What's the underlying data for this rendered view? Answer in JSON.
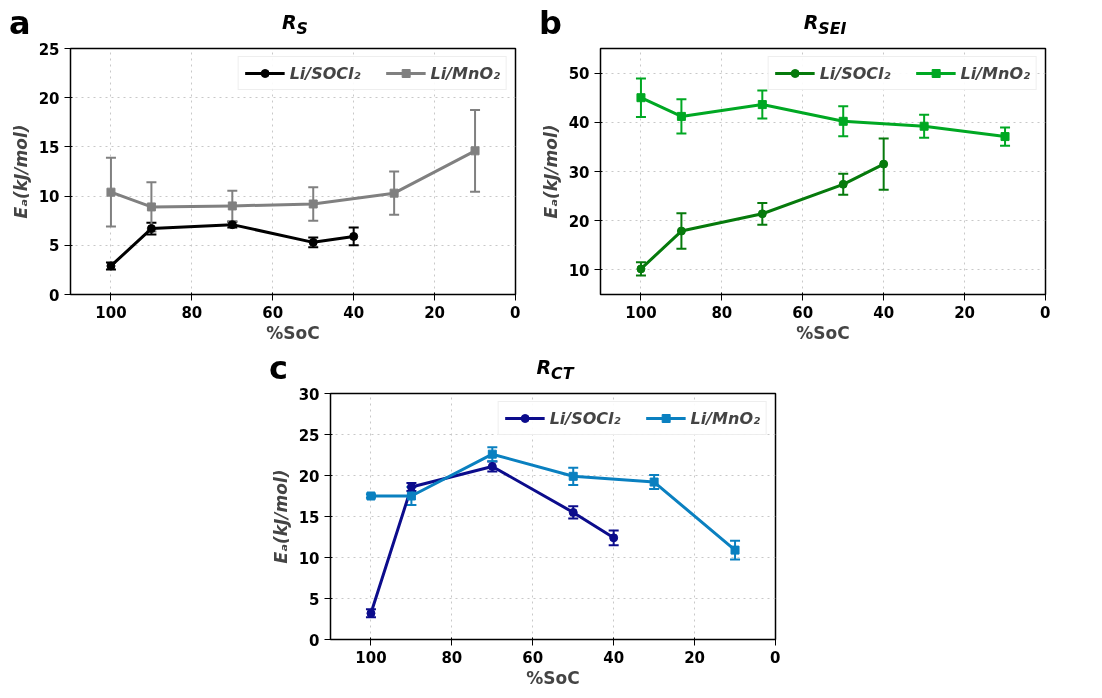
{
  "chart_data": [
    {
      "type": "line",
      "title": "R$_{S}$",
      "xlabel": "%SoC",
      "ylabel": "Eₐ(kJ/mol)",
      "annotations": [
        "a"
      ],
      "xlim": [
        110,
        0
      ],
      "xticks": [
        100,
        80,
        60,
        40,
        20,
        0
      ],
      "ylim": [
        0,
        25
      ],
      "yticks": [
        0,
        5,
        10,
        15,
        20,
        25
      ],
      "grid": true,
      "legend": "top right",
      "line_style": "solid",
      "series": [
        {
          "name": "Li/SOCl₂",
          "color": "#000000",
          "marker": "circle",
          "x": [
            100,
            90,
            70,
            50,
            40
          ],
          "values": [
            2.9,
            6.7,
            7.1,
            5.3,
            5.9
          ],
          "errors": [
            0.35,
            0.6,
            0.3,
            0.5,
            0.9
          ]
        },
        {
          "name": "Li/MnO₂",
          "color": "#808080",
          "marker": "square",
          "x": [
            100,
            90,
            70,
            50,
            30,
            10
          ],
          "values": [
            10.4,
            8.9,
            9.0,
            9.2,
            10.3,
            14.6
          ],
          "errors": [
            3.5,
            2.5,
            1.55,
            1.7,
            2.2,
            4.15
          ]
        }
      ]
    },
    {
      "type": "line",
      "title": "R$_{SEI}$",
      "xlabel": "%SoC",
      "ylabel": "Eₐ(kJ/mol)",
      "annotations": [
        "b"
      ],
      "xlim": [
        110,
        0
      ],
      "xticks": [
        100,
        80,
        60,
        40,
        20,
        0
      ],
      "ylim": [
        5,
        55
      ],
      "yticks": [
        10,
        20,
        30,
        40,
        50
      ],
      "grid": true,
      "legend": "top right",
      "line_style": "solid",
      "series": [
        {
          "name": "Li/SOCl₂",
          "color": "#067a0c",
          "marker": "circle",
          "x": [
            100,
            90,
            70,
            50,
            40
          ],
          "values": [
            10.2,
            17.9,
            21.4,
            27.4,
            31.5
          ],
          "errors": [
            1.35,
            3.6,
            2.2,
            2.15,
            5.2
          ]
        },
        {
          "name": "Li/MnO₂",
          "color": "#00a823",
          "marker": "square",
          "x": [
            100,
            90,
            70,
            50,
            30,
            10
          ],
          "values": [
            45.0,
            41.2,
            43.6,
            40.2,
            39.2,
            37.1
          ],
          "errors": [
            3.9,
            3.5,
            2.85,
            3.05,
            2.35,
            1.85
          ]
        }
      ]
    },
    {
      "type": "line",
      "title": "R$_{CT}$",
      "xlabel": "%SoC",
      "ylabel": "Eₐ(kJ/mol)",
      "annotations": [
        "c"
      ],
      "xlim": [
        110,
        0
      ],
      "xticks": [
        100,
        80,
        60,
        40,
        20,
        0
      ],
      "ylim": [
        0,
        30
      ],
      "yticks": [
        0,
        5,
        10,
        15,
        20,
        25,
        30
      ],
      "grid": true,
      "legend": "top right",
      "line_style": "solid",
      "series": [
        {
          "name": "Li/SOCl₂",
          "color": "#0c0c8c",
          "marker": "circle",
          "x": [
            100,
            90,
            70,
            50,
            40
          ],
          "values": [
            3.2,
            18.6,
            21.1,
            15.5,
            12.4
          ],
          "errors": [
            0.5,
            0.5,
            0.6,
            0.75,
            0.9
          ]
        },
        {
          "name": "Li/MnO₂",
          "color": "#0a80c0",
          "marker": "square",
          "x": [
            100,
            90,
            70,
            50,
            30,
            10
          ],
          "values": [
            17.5,
            17.5,
            22.6,
            19.9,
            19.2,
            10.9
          ],
          "errors": [
            0.2,
            1.1,
            0.85,
            1.05,
            0.85,
            1.15
          ]
        }
      ]
    }
  ]
}
